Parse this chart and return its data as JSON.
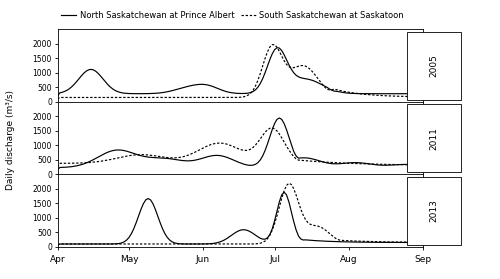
{
  "title": "",
  "legend_solid": "North Saskatchewan at Prince Albert",
  "legend_dashed": "South Saskatchewan at Saskatoon",
  "ylabel": "Daily discharge (m³/s)",
  "years": [
    "2005",
    "2011",
    "2013"
  ],
  "ylim": [
    0,
    2500
  ],
  "yticks": [
    0,
    500,
    1000,
    1500,
    2000
  ],
  "xtick_positions": [
    0,
    30,
    61,
    91,
    122,
    153
  ],
  "xticklabels": [
    "Apr",
    "May",
    "Jun",
    "Jul",
    "Aug",
    "Sep"
  ],
  "background_color": "#ffffff",
  "line_color": "#000000"
}
